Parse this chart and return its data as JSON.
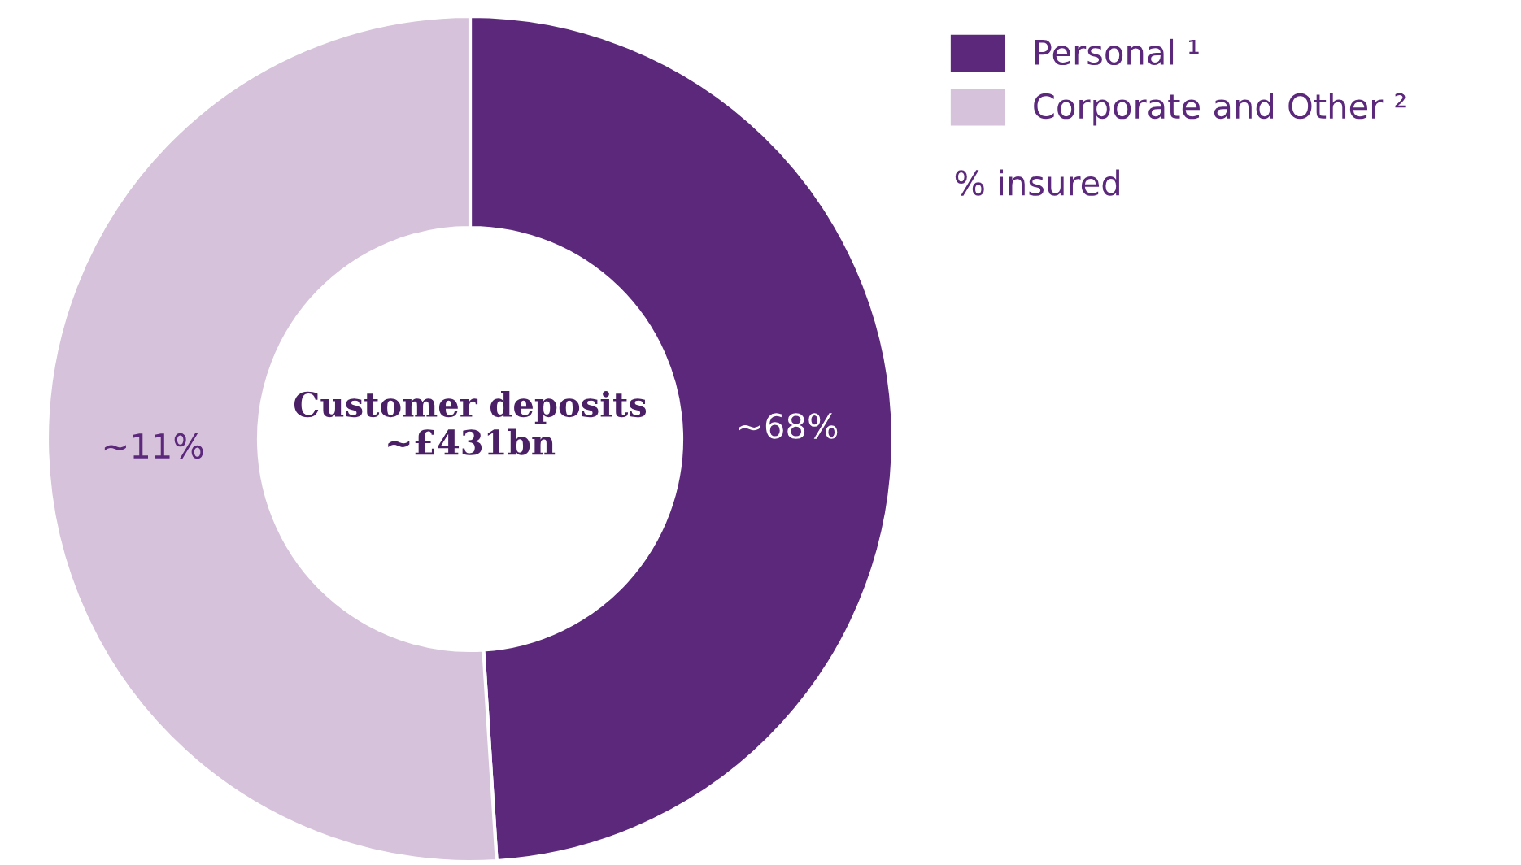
{
  "chart_data": {
    "type": "donut",
    "categories": [
      "Personal ¹",
      "Corporate and Other ²"
    ],
    "values": [
      49,
      51
    ],
    "colors": [
      "#5c287c",
      "#d6c2da"
    ],
    "legend": "top right",
    "annotations": [
      "Customer deposits\n~£431bn",
      "% insured",
      "~68%",
      "~11%"
    ]
  }
}
